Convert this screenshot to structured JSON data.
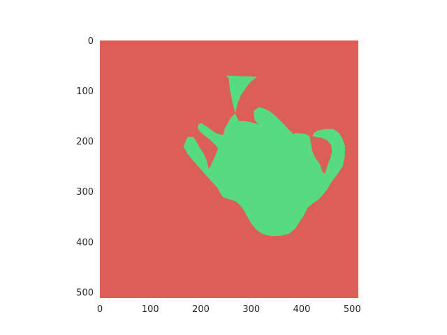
{
  "chart_data": {
    "type": "heatmap",
    "title": "",
    "xlabel": "",
    "ylabel": "",
    "xlim": [
      0,
      512
    ],
    "ylim": [
      512,
      0
    ],
    "grid": false,
    "x_ticks": [
      0,
      100,
      200,
      300,
      400,
      500
    ],
    "y_ticks": [
      0,
      100,
      200,
      300,
      400,
      500
    ],
    "x_tick_labels": [
      "0",
      "100",
      "200",
      "300",
      "400",
      "500"
    ],
    "y_tick_labels": [
      "0",
      "100",
      "200",
      "300",
      "400",
      "500"
    ],
    "classes": [
      {
        "value": 0,
        "color": "#db5f57"
      },
      {
        "value": 1,
        "color": "#57db80"
      }
    ],
    "regions": [
      {
        "class": 1,
        "outline": [
          [
            250,
            70
          ],
          [
            255,
            75
          ],
          [
            258,
            100
          ],
          [
            262,
            120
          ],
          [
            268,
            145
          ],
          [
            275,
            160
          ],
          [
            287,
            160
          ],
          [
            300,
            163
          ],
          [
            310,
            165
          ],
          [
            320,
            168
          ],
          [
            330,
            172
          ],
          [
            340,
            176
          ],
          [
            348,
            178
          ],
          [
            355,
            182
          ],
          [
            360,
            184
          ],
          [
            370,
            185
          ],
          [
            380,
            186
          ],
          [
            390,
            184
          ],
          [
            398,
            185
          ],
          [
            408,
            186
          ],
          [
            415,
            190
          ],
          [
            417,
            198
          ],
          [
            419,
            210
          ],
          [
            421,
            220
          ],
          [
            426,
            232
          ],
          [
            436,
            246
          ],
          [
            440,
            260
          ],
          [
            446,
            265
          ],
          [
            451,
            248
          ],
          [
            457,
            232
          ],
          [
            460,
            220
          ],
          [
            458,
            208
          ],
          [
            450,
            198
          ],
          [
            437,
            193
          ],
          [
            428,
            192
          ],
          [
            421,
            190
          ],
          [
            424,
            184
          ],
          [
            431,
            179
          ],
          [
            447,
            176
          ],
          [
            462,
            176
          ],
          [
            474,
            184
          ],
          [
            481,
            196
          ],
          [
            486,
            212
          ],
          [
            485,
            232
          ],
          [
            481,
            250
          ],
          [
            471,
            265
          ],
          [
            460,
            280
          ],
          [
            451,
            295
          ],
          [
            442,
            307
          ],
          [
            432,
            317
          ],
          [
            420,
            325
          ],
          [
            412,
            332
          ],
          [
            404,
            348
          ],
          [
            396,
            360
          ],
          [
            387,
            374
          ],
          [
            375,
            384
          ],
          [
            360,
            388
          ],
          [
            340,
            389
          ],
          [
            323,
            385
          ],
          [
            310,
            376
          ],
          [
            300,
            364
          ],
          [
            292,
            350
          ],
          [
            285,
            337
          ],
          [
            278,
            328
          ],
          [
            270,
            320
          ],
          [
            258,
            316
          ],
          [
            247,
            313
          ],
          [
            241,
            308
          ],
          [
            233,
            293
          ],
          [
            223,
            282
          ],
          [
            210,
            268
          ],
          [
            197,
            253
          ],
          [
            185,
            239
          ],
          [
            174,
            226
          ],
          [
            166,
            211
          ],
          [
            170,
            199
          ],
          [
            174,
            192
          ],
          [
            185,
            191
          ],
          [
            191,
            200
          ],
          [
            197,
            212
          ],
          [
            205,
            224
          ],
          [
            211,
            237
          ],
          [
            216,
            256
          ],
          [
            224,
            239
          ],
          [
            231,
            224
          ],
          [
            234,
            214
          ],
          [
            228,
            207
          ],
          [
            218,
            197
          ],
          [
            205,
            187
          ],
          [
            198,
            181
          ],
          [
            194,
            175
          ],
          [
            195,
            167
          ],
          [
            201,
            164
          ],
          [
            210,
            170
          ],
          [
            220,
            177
          ],
          [
            230,
            184
          ],
          [
            239,
            187
          ],
          [
            244,
            188
          ],
          [
            248,
            174
          ],
          [
            254,
            163
          ],
          [
            260,
            153
          ],
          [
            268,
            145
          ],
          [
            273,
            125
          ],
          [
            280,
            108
          ],
          [
            288,
            96
          ],
          [
            294,
            88
          ],
          [
            300,
            81
          ],
          [
            307,
            76
          ],
          [
            312,
            72
          ]
        ]
      },
      {
        "class": 1,
        "outline": [
          [
            305,
            140
          ],
          [
            314,
            133
          ],
          [
            325,
            135
          ],
          [
            335,
            140
          ],
          [
            346,
            148
          ],
          [
            356,
            158
          ],
          [
            366,
            168
          ],
          [
            375,
            178
          ],
          [
            383,
            186
          ],
          [
            372,
            189
          ],
          [
            362,
            189
          ],
          [
            352,
            186
          ],
          [
            342,
            182
          ],
          [
            330,
            176
          ],
          [
            318,
            168
          ],
          [
            311,
            163
          ],
          [
            307,
            158
          ],
          [
            305,
            150
          ]
        ]
      }
    ]
  }
}
